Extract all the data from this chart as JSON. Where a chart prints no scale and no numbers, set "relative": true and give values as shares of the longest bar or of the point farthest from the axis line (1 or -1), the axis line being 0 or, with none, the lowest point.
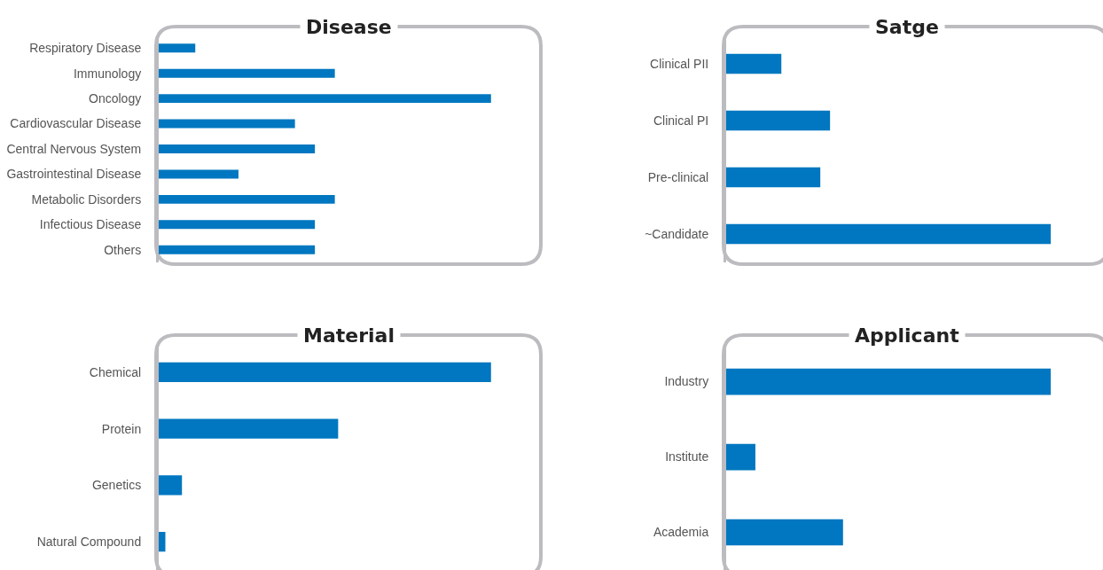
{
  "chart_data": [
    {
      "type": "bar",
      "orientation": "horizontal",
      "relative": true,
      "title": "Disease",
      "color": "#0077c0",
      "categories": [
        "Respiratory Disease",
        "Immunology",
        "Oncology",
        "Cardiovascular Disease",
        "Central Nervous System",
        "Gastrointestinal Disease",
        "Metabolic Disorders",
        "Infectious Disease",
        "Others"
      ],
      "values": [
        0.11,
        0.53,
        1,
        0.41,
        0.47,
        0.24,
        0.53,
        0.47,
        0.47
      ]
    },
    {
      "type": "bar",
      "orientation": "horizontal",
      "relative": true,
      "title": "Satge",
      "color": "#0077c0",
      "categories": [
        "Clinical PII",
        "Clinical PI",
        "Pre-clinical",
        "~Candidate"
      ],
      "values": [
        0.17,
        0.32,
        0.29,
        1
      ]
    },
    {
      "type": "bar",
      "orientation": "horizontal",
      "relative": true,
      "title": "Material",
      "color": "#0077c0",
      "categories": [
        "Chemical",
        "Protein",
        "Genetics",
        "Natural Compound"
      ],
      "values": [
        1,
        0.54,
        0.07,
        0.02
      ]
    },
    {
      "type": "bar",
      "orientation": "horizontal",
      "relative": true,
      "title": "Applicant",
      "color": "#0077c0",
      "categories": [
        "Industry",
        "Institute",
        "Academia"
      ],
      "values": [
        1,
        0.09,
        0.36
      ]
    }
  ]
}
